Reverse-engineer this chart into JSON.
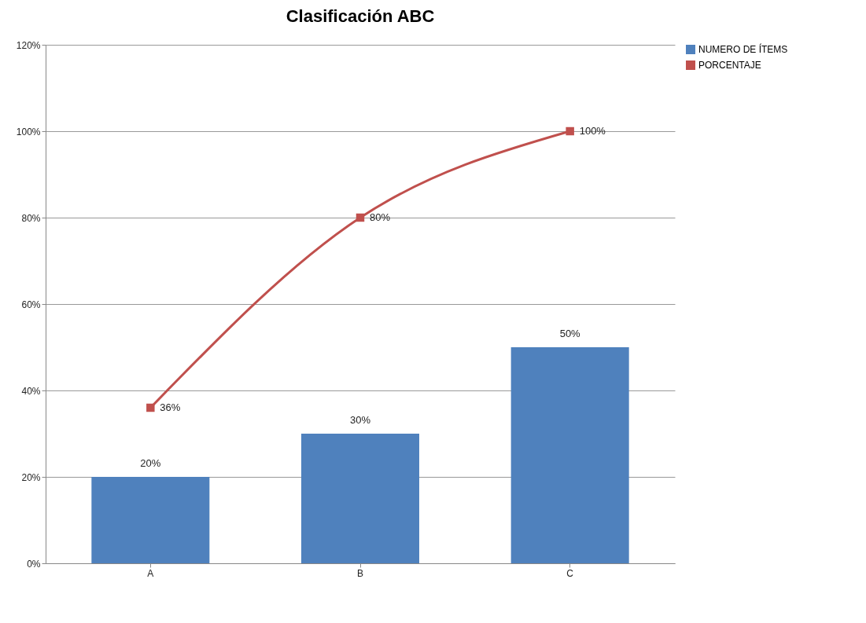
{
  "chart_data": {
    "type": "bar",
    "title": "Clasificación ABC",
    "categories": [
      "A",
      "B",
      "C"
    ],
    "series": [
      {
        "name": "NUMERO DE ÍTEMS",
        "color": "#4f81bd",
        "values": [
          20,
          30,
          50
        ],
        "value_labels": [
          "20%",
          "30%",
          "50%"
        ]
      },
      {
        "name": "PORCENTAJE",
        "type": "line",
        "color": "#c0504d",
        "values": [
          36,
          80,
          100
        ],
        "value_labels": [
          "36%",
          "80%",
          "100%"
        ]
      }
    ],
    "ylim": [
      0,
      120
    ],
    "yticks": [
      {
        "value": 0,
        "label": "0%"
      },
      {
        "value": 20,
        "label": "20%"
      },
      {
        "value": 40,
        "label": "40%"
      },
      {
        "value": 60,
        "label": "60%"
      },
      {
        "value": 80,
        "label": "80%"
      },
      {
        "value": 100,
        "label": "100%"
      },
      {
        "value": 120,
        "label": "120%"
      }
    ],
    "grid": "y",
    "legend": "right",
    "marker": "square"
  }
}
